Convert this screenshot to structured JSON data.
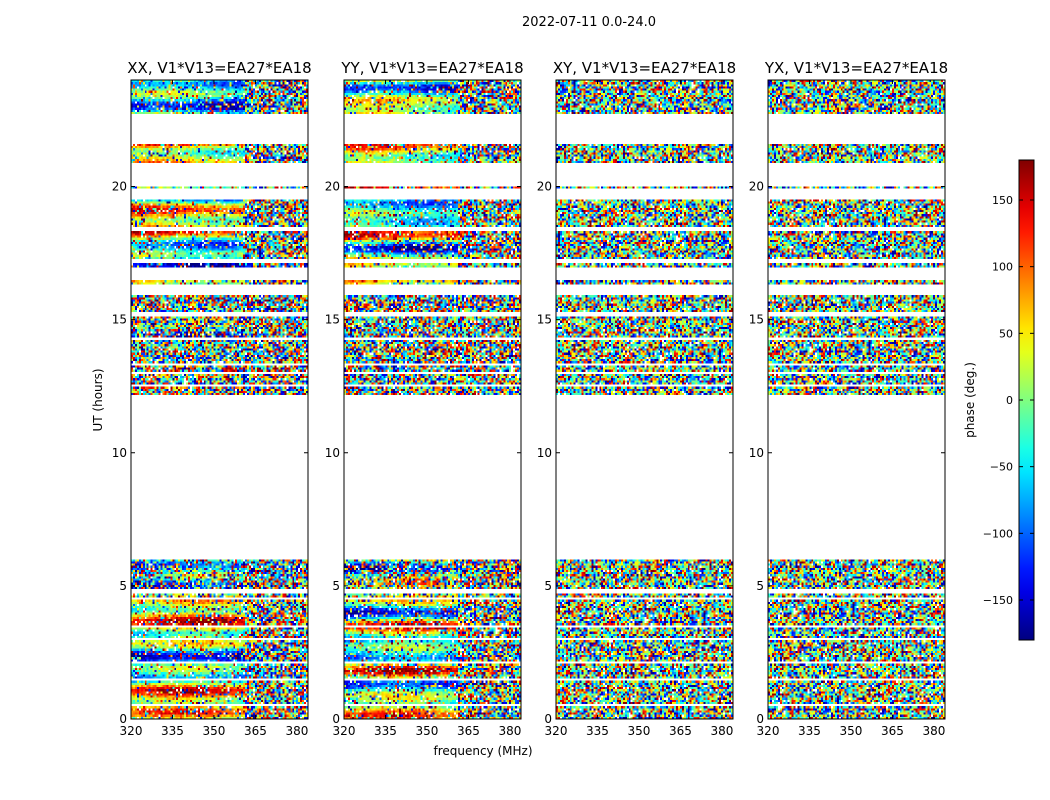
{
  "figure": {
    "suptitle": "2022-07-11 0.0-24.0",
    "xlabel": "frequency (MHz)",
    "ylabel": "UT (hours)",
    "colorbar_label": "phase (deg.)"
  },
  "chart_data": {
    "type": "heatmap",
    "x_range_mhz": [
      320,
      384
    ],
    "xticks": [
      320,
      335,
      350,
      365,
      380
    ],
    "y_range_hours": [
      0,
      24
    ],
    "yticks": [
      0,
      5,
      10,
      15,
      20
    ],
    "color_range_deg": [
      -180,
      180
    ],
    "colorbar_ticks": [
      150,
      100,
      50,
      0,
      -50,
      -100,
      -150
    ],
    "colormap": "jet",
    "panels": [
      {
        "title": "XX, V1*V13=EA27*EA18",
        "polarization": "XX",
        "coherent": true
      },
      {
        "title": "YY, V1*V13=EA27*EA18",
        "polarization": "YY",
        "coherent": true
      },
      {
        "title": "XY, V1*V13=EA27*EA18",
        "polarization": "XY",
        "coherent": false
      },
      {
        "title": "YX, V1*V13=EA27*EA18",
        "polarization": "YX",
        "coherent": false
      }
    ],
    "data_present_hours": [
      [
        0,
        6.0
      ],
      [
        12.2,
        15.9
      ],
      [
        16.3,
        16.5
      ],
      [
        17.0,
        19.5
      ],
      [
        19.9,
        20.0
      ],
      [
        20.9,
        21.6
      ],
      [
        22.7,
        24.0
      ]
    ],
    "rfi_onset_mhz": 361,
    "flagged_rows_hours": [
      0.5,
      1.5,
      2.1,
      3.0,
      3.5,
      4.5,
      4.8,
      12.5,
      13.0,
      13.3,
      14.3,
      15.2,
      17.2,
      18.4
    ]
  }
}
